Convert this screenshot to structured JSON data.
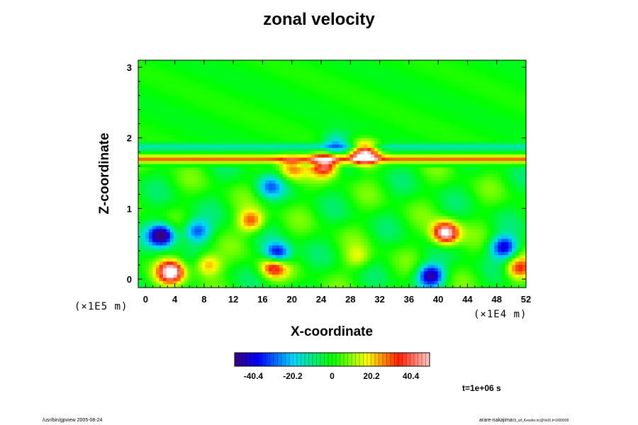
{
  "chart_data": {
    "type": "heatmap",
    "title": "zonal velocity",
    "xlabel": "X-coordinate",
    "ylabel": "Z-coordinate",
    "x_ticks": [
      "0",
      "4",
      "8",
      "12",
      "16",
      "20",
      "24",
      "28",
      "32",
      "36",
      "40",
      "44",
      "48",
      "52"
    ],
    "y_ticks": [
      "0",
      "1",
      "2",
      "3"
    ],
    "xlim": [
      -1,
      52
    ],
    "ylim": [
      -0.12,
      3.1
    ],
    "x_scale_label": "(×1E4 m)",
    "y_scale_label": "(×1E5 m)",
    "colorbar": {
      "range": [
        -50,
        50
      ],
      "ticks": [
        "-40.4",
        "-20.2",
        "0",
        "20.2",
        "40.4"
      ],
      "tick_values": [
        -40.4,
        -20.2,
        0,
        20.2,
        40.4
      ]
    },
    "grid": false,
    "features": [
      {
        "x": 2.2,
        "z": 0.62,
        "value": -55
      },
      {
        "x": 3.5,
        "z": 0.1,
        "value": 55
      },
      {
        "x": 7.0,
        "z": 0.68,
        "value": -32
      },
      {
        "x": 8.5,
        "z": 0.2,
        "value": 28
      },
      {
        "x": 14.5,
        "z": 0.82,
        "value": 32
      },
      {
        "x": 17.5,
        "z": 0.18,
        "value": 42
      },
      {
        "x": 18.0,
        "z": 0.35,
        "value": -48
      },
      {
        "x": 17.0,
        "z": 1.3,
        "value": -24
      },
      {
        "x": 20.0,
        "z": 1.55,
        "value": 26
      },
      {
        "x": 24.5,
        "z": 1.62,
        "value": 42
      },
      {
        "x": 30.0,
        "z": 1.78,
        "value": 55
      },
      {
        "x": 26.0,
        "z": 1.92,
        "value": -20
      },
      {
        "x": 41.0,
        "z": 0.65,
        "value": 58
      },
      {
        "x": 39.0,
        "z": 0.05,
        "value": -48
      },
      {
        "x": 49.0,
        "z": 0.45,
        "value": -42
      },
      {
        "x": 51.0,
        "z": 0.15,
        "value": 32
      },
      {
        "x": 29.0,
        "z": 0.3,
        "value": 14
      }
    ]
  },
  "annotations": {
    "time": "t=1e+06 s"
  },
  "footer": {
    "left": "/usr/bin/gpview 2005-08-24",
    "right": "arare-nakajima",
    "right_sub": "03_wf_Kessler.nc@VelX,t=1000000"
  }
}
